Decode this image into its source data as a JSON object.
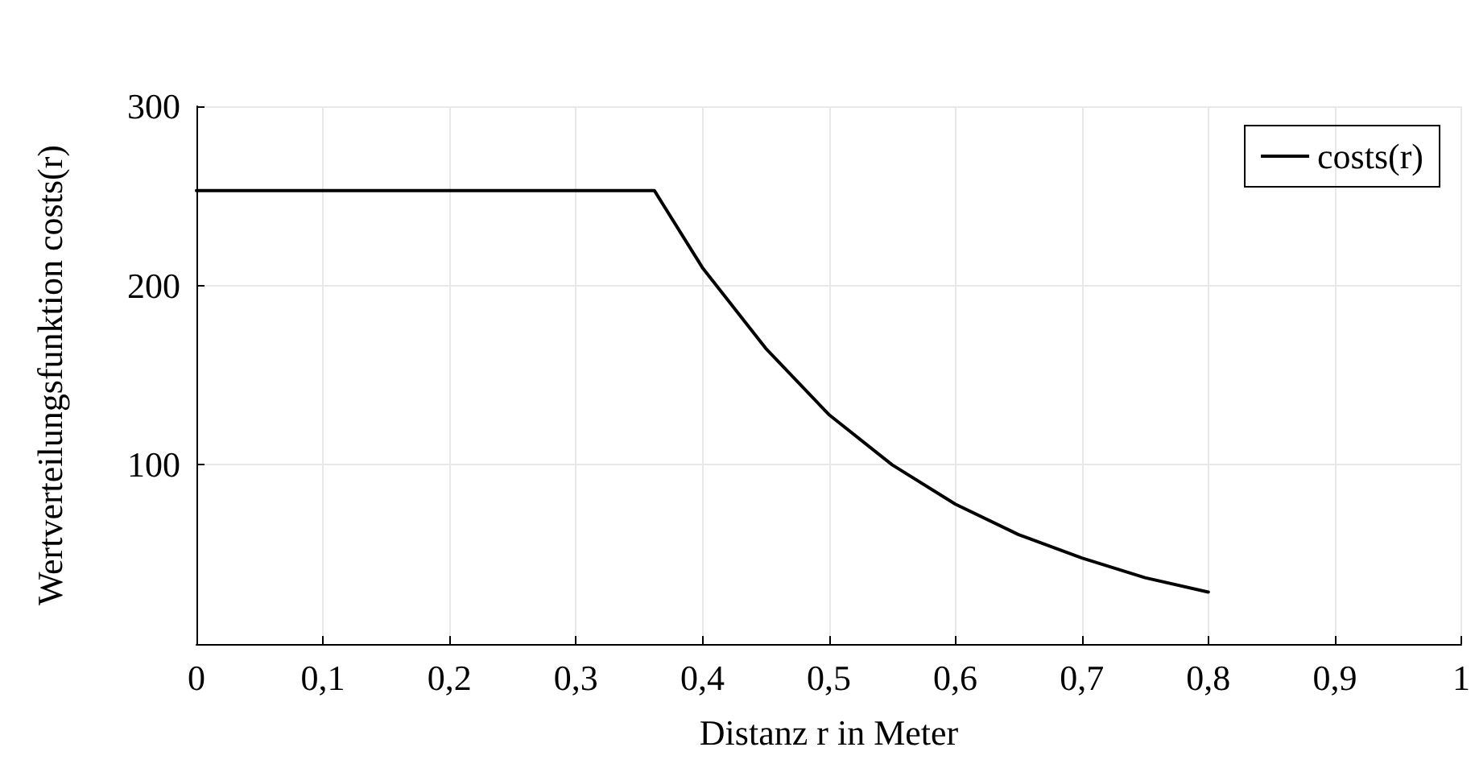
{
  "chart_data": {
    "type": "line",
    "xlabel": "Distanz r in Meter",
    "ylabel": "Wertverteilungsfunktion costs(r)",
    "xlim": [
      0,
      1
    ],
    "xticks": [
      0,
      {
        "value": 0.1,
        "label": "0,1"
      },
      {
        "value": 0.2,
        "label": "0,2"
      },
      {
        "value": 0.3,
        "label": "0,3"
      },
      {
        "value": 0.4,
        "label": "0,4"
      },
      {
        "value": 0.5,
        "label": "0,5"
      },
      {
        "value": 0.6,
        "label": "0,6"
      },
      {
        "value": 0.7,
        "label": "0,7"
      },
      {
        "value": 0.8,
        "label": "0,8"
      },
      {
        "value": 0.9,
        "label": "0,9"
      },
      1
    ],
    "ylim": [
      0,
      300
    ],
    "yticks": [
      100,
      200,
      300
    ],
    "grid": true,
    "legend": "top right",
    "marker": "none",
    "line_style": "solid",
    "series": [
      {
        "name": "costs(r)",
        "color": "#000000",
        "x": [
          0,
          0.1,
          0.2,
          0.3,
          0.362,
          0.4,
          0.45,
          0.5,
          0.55,
          0.6,
          0.65,
          0.7,
          0.75,
          0.8
        ],
        "values": [
          253,
          253,
          253,
          253,
          253,
          210,
          165,
          128,
          100,
          78,
          61,
          48,
          37,
          29
        ]
      }
    ]
  }
}
